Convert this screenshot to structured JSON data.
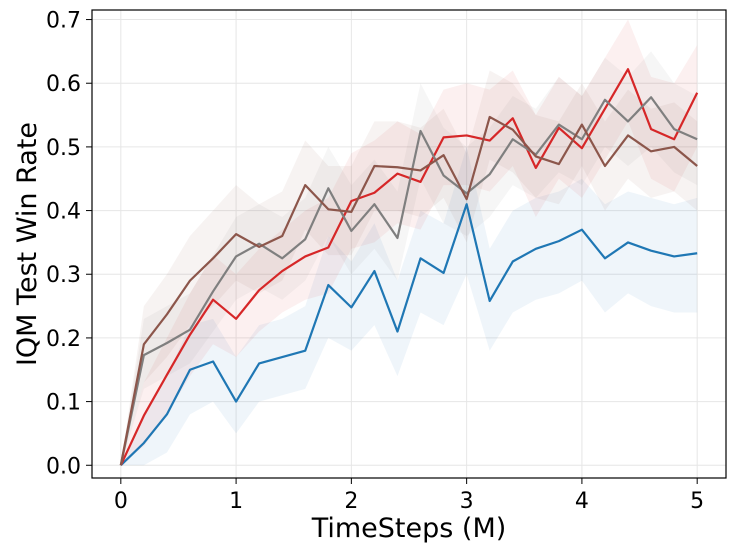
{
  "chart_data": {
    "type": "line",
    "title": "",
    "xlabel": "TimeSteps (M)",
    "ylabel": "IQM Test Win Rate",
    "xlim": [
      -0.25,
      5.25
    ],
    "ylim": [
      -0.02,
      0.715
    ],
    "xticks": [
      0,
      1,
      2,
      3,
      4,
      5
    ],
    "yticks": [
      0.0,
      0.1,
      0.2,
      0.3,
      0.4,
      0.5,
      0.6,
      0.7
    ],
    "xtick_labels": [
      "0",
      "1",
      "2",
      "3",
      "4",
      "5"
    ],
    "ytick_labels": [
      "0.0",
      "0.1",
      "0.2",
      "0.3",
      "0.4",
      "0.5",
      "0.6",
      "0.7"
    ],
    "grid": true,
    "legend": "none",
    "x": [
      0,
      0.2,
      0.4,
      0.6,
      0.8,
      1.0,
      1.2,
      1.4,
      1.6,
      1.8,
      2.0,
      2.2,
      2.4,
      2.6,
      2.8,
      3.0,
      3.2,
      3.4,
      3.6,
      3.8,
      4.0,
      4.2,
      4.4,
      4.6,
      4.8,
      5.0
    ],
    "series": [
      {
        "color": "#1f77b4",
        "values": [
          0.0,
          0.035,
          0.08,
          0.15,
          0.163,
          0.1,
          0.16,
          0.17,
          0.18,
          0.283,
          0.248,
          0.305,
          0.21,
          0.325,
          0.302,
          0.41,
          0.258,
          0.32,
          0.34,
          0.352,
          0.37,
          0.325,
          0.35,
          0.337,
          0.328,
          0.333
        ],
        "lower": [
          0.0,
          0.0,
          0.02,
          0.08,
          0.1,
          0.05,
          0.1,
          0.11,
          0.12,
          0.2,
          0.18,
          0.22,
          0.14,
          0.24,
          0.22,
          0.3,
          0.18,
          0.24,
          0.26,
          0.27,
          0.29,
          0.24,
          0.27,
          0.25,
          0.24,
          0.24
        ],
        "upper": [
          0.0,
          0.08,
          0.14,
          0.22,
          0.23,
          0.17,
          0.22,
          0.23,
          0.25,
          0.36,
          0.32,
          0.38,
          0.29,
          0.4,
          0.38,
          0.5,
          0.34,
          0.4,
          0.42,
          0.43,
          0.45,
          0.41,
          0.43,
          0.42,
          0.41,
          0.42
        ]
      },
      {
        "color": "#d62728",
        "values": [
          0.0,
          0.078,
          0.142,
          0.205,
          0.26,
          0.23,
          0.275,
          0.305,
          0.328,
          0.342,
          0.415,
          0.428,
          0.458,
          0.445,
          0.515,
          0.518,
          0.51,
          0.545,
          0.467,
          0.53,
          0.498,
          0.56,
          0.622,
          0.528,
          0.512,
          0.585
        ],
        "lower": [
          0.0,
          0.03,
          0.08,
          0.14,
          0.19,
          0.17,
          0.21,
          0.24,
          0.26,
          0.27,
          0.34,
          0.35,
          0.38,
          0.37,
          0.44,
          0.44,
          0.43,
          0.47,
          0.39,
          0.45,
          0.42,
          0.48,
          0.54,
          0.45,
          0.43,
          0.5
        ],
        "upper": [
          0.0,
          0.13,
          0.2,
          0.27,
          0.33,
          0.3,
          0.34,
          0.37,
          0.4,
          0.42,
          0.49,
          0.51,
          0.54,
          0.52,
          0.59,
          0.6,
          0.59,
          0.62,
          0.55,
          0.61,
          0.58,
          0.64,
          0.7,
          0.61,
          0.6,
          0.66
        ]
      },
      {
        "color": "#7f7f7f",
        "values": [
          0.0,
          0.173,
          0.192,
          0.213,
          0.273,
          0.328,
          0.348,
          0.325,
          0.355,
          0.435,
          0.368,
          0.41,
          0.357,
          0.525,
          0.455,
          0.427,
          0.457,
          0.512,
          0.488,
          0.535,
          0.512,
          0.574,
          0.54,
          0.578,
          0.528,
          0.512
        ],
        "lower": [
          0.0,
          0.12,
          0.14,
          0.16,
          0.21,
          0.26,
          0.28,
          0.26,
          0.29,
          0.36,
          0.3,
          0.34,
          0.29,
          0.45,
          0.38,
          0.36,
          0.39,
          0.44,
          0.42,
          0.46,
          0.44,
          0.5,
          0.47,
          0.5,
          0.46,
          0.44
        ],
        "upper": [
          0.0,
          0.23,
          0.25,
          0.27,
          0.33,
          0.39,
          0.41,
          0.39,
          0.42,
          0.5,
          0.44,
          0.48,
          0.43,
          0.6,
          0.53,
          0.5,
          0.53,
          0.58,
          0.56,
          0.61,
          0.58,
          0.64,
          0.61,
          0.65,
          0.6,
          0.58
        ]
      },
      {
        "color": "#8c564b",
        "values": [
          0.0,
          0.19,
          0.237,
          0.29,
          0.325,
          0.363,
          0.343,
          0.36,
          0.44,
          0.402,
          0.398,
          0.47,
          0.468,
          0.463,
          0.487,
          0.418,
          0.547,
          0.527,
          0.485,
          0.473,
          0.535,
          0.47,
          0.518,
          0.493,
          0.5,
          0.47
        ],
        "lower": [
          0.0,
          0.13,
          0.17,
          0.22,
          0.25,
          0.29,
          0.27,
          0.29,
          0.37,
          0.33,
          0.33,
          0.4,
          0.4,
          0.39,
          0.42,
          0.35,
          0.48,
          0.46,
          0.42,
          0.41,
          0.47,
          0.4,
          0.45,
          0.42,
          0.43,
          0.4
        ],
        "upper": [
          0.0,
          0.25,
          0.3,
          0.36,
          0.4,
          0.44,
          0.41,
          0.43,
          0.51,
          0.47,
          0.47,
          0.54,
          0.54,
          0.53,
          0.56,
          0.49,
          0.62,
          0.6,
          0.55,
          0.54,
          0.6,
          0.54,
          0.59,
          0.56,
          0.57,
          0.54
        ]
      }
    ]
  }
}
